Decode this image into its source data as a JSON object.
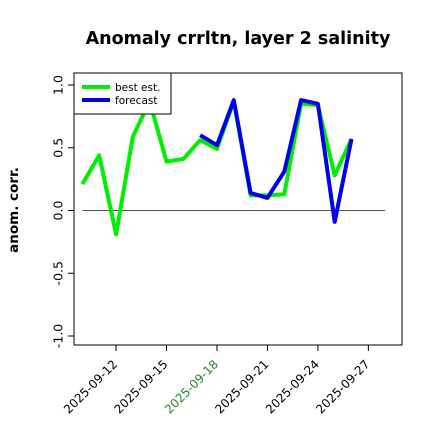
{
  "chart_data": {
    "type": "line",
    "title": "Anomaly crrltn, layer 2 salinity",
    "xlabel": "",
    "ylabel": "anom. corr.",
    "ylim": [
      -1.0,
      1.0
    ],
    "yticks": [
      "-1.0",
      "-0.5",
      "0.0",
      "0.5",
      "1.0"
    ],
    "ytick_values": [
      -1.0,
      -0.5,
      0.0,
      0.5,
      1.0
    ],
    "xticks": [
      "2025-09-12",
      "2025-09-15",
      "2025-09-18",
      "2025-09-21",
      "2025-09-24",
      "2025-09-27"
    ],
    "xtick_values": [
      2,
      5,
      8,
      11,
      14,
      17
    ],
    "xtick_colors": [
      "#000000",
      "#000000",
      "#228B22",
      "#000000",
      "#000000",
      "#000000"
    ],
    "xlim": [
      -0.5,
      19.0
    ],
    "reference_line": 0.0,
    "grid": false,
    "legend_position": "top-left",
    "x": [
      "2025-09-11",
      "2025-09-12",
      "2025-09-13",
      "2025-09-14",
      "2025-09-15",
      "2025-09-16",
      "2025-09-17",
      "2025-09-18",
      "2025-09-19",
      "2025-09-20",
      "2025-09-21",
      "2025-09-22",
      "2025-09-23",
      "2025-09-24",
      "2025-09-25",
      "2025-09-26",
      "2025-09-27"
    ],
    "series": [
      {
        "name": "best est.",
        "color": "#00ee00",
        "values": [
          0.21,
          0.44,
          -0.19,
          0.59,
          0.87,
          0.39,
          0.41,
          0.56,
          0.49,
          0.87,
          0.12,
          0.12,
          0.13,
          0.85,
          0.84,
          0.28,
          0.57
        ]
      },
      {
        "name": "forecast",
        "color": "#0000ee",
        "values": [
          null,
          null,
          null,
          null,
          null,
          null,
          null,
          0.6,
          0.52,
          0.88,
          0.14,
          0.1,
          0.31,
          0.88,
          0.85,
          -0.09,
          0.57
        ]
      }
    ]
  }
}
